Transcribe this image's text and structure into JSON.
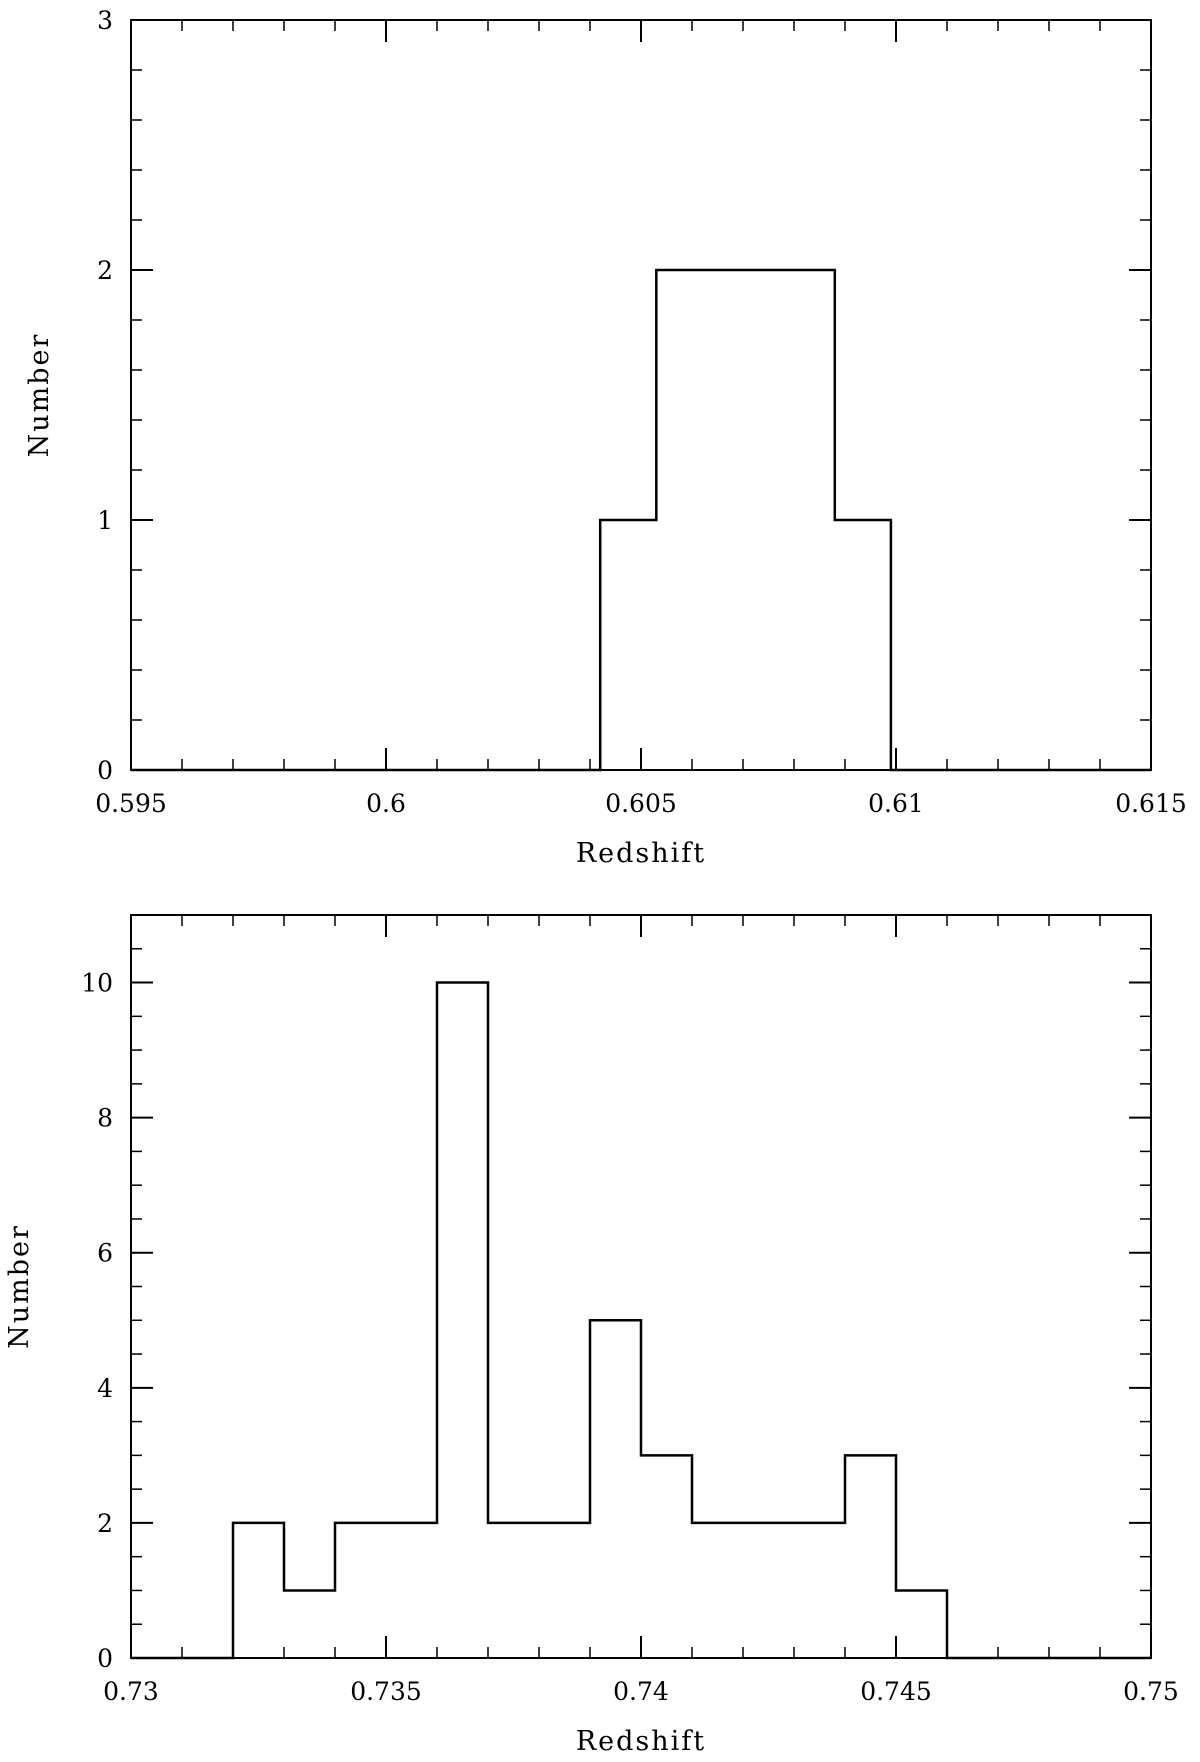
{
  "chart_data": [
    {
      "type": "bar",
      "style": "step-histogram",
      "xlabel": "Redshift",
      "ylabel": "Number",
      "xlim": [
        0.595,
        0.615
      ],
      "ylim": [
        0,
        3
      ],
      "xticks": [
        0.595,
        0.6,
        0.605,
        0.61,
        0.615
      ],
      "xtick_labels": [
        "0.595",
        "0.6",
        "0.605",
        "0.61",
        "0.615"
      ],
      "yticks": [
        0,
        1,
        2,
        3
      ],
      "ytick_labels": [
        "0",
        "1",
        "2",
        "3"
      ],
      "bin_edges": [
        0.595,
        0.6042,
        0.6053,
        0.6088,
        0.6099,
        0.615
      ],
      "values": [
        0,
        1,
        2,
        1,
        0
      ],
      "grid": false,
      "line_color": "#000000"
    },
    {
      "type": "bar",
      "style": "step-histogram",
      "xlabel": "Redshift",
      "ylabel": "Number",
      "xlim": [
        0.73,
        0.75
      ],
      "ylim": [
        0,
        11
      ],
      "xticks": [
        0.73,
        0.735,
        0.74,
        0.745,
        0.75
      ],
      "xtick_labels": [
        "0.73",
        "0.735",
        "0.74",
        "0.745",
        "0.75"
      ],
      "yticks": [
        0,
        2,
        4,
        6,
        8,
        10
      ],
      "ytick_labels": [
        "0",
        "2",
        "4",
        "6",
        "8",
        "10"
      ],
      "bin_edges": [
        0.73,
        0.732,
        0.733,
        0.734,
        0.735,
        0.736,
        0.737,
        0.738,
        0.739,
        0.74,
        0.741,
        0.742,
        0.743,
        0.744,
        0.745,
        0.746,
        0.75
      ],
      "values": [
        0,
        2,
        1,
        2,
        2,
        10,
        2,
        2,
        5,
        3,
        2,
        2,
        2,
        3,
        1,
        0
      ],
      "grid": false,
      "line_color": "#000000"
    }
  ]
}
